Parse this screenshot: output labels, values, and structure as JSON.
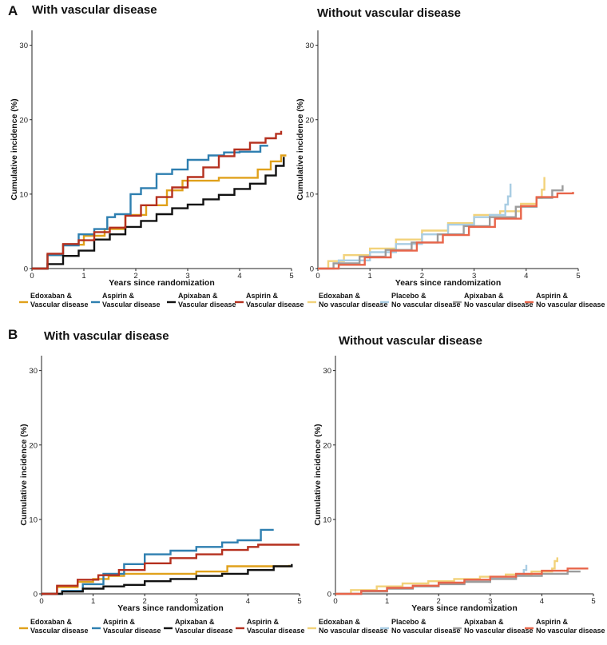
{
  "figure": {
    "panels": [
      {
        "letter": "A",
        "title": "With vascular disease"
      },
      {
        "letter": "",
        "title": "Without vascular disease"
      },
      {
        "letter": "B",
        "title": "With vascular disease"
      },
      {
        "letter": "",
        "title": "Without vascular disease"
      }
    ]
  },
  "chart_data": [
    {
      "type": "line",
      "panel": "A",
      "title": "With vascular disease",
      "xlabel": "Years since randomization",
      "ylabel": "Cumulative incidence (%)",
      "xlim": [
        0,
        5
      ],
      "ylim": [
        0,
        32
      ],
      "xticks": [
        0,
        1,
        2,
        3,
        4,
        5
      ],
      "yticks": [
        0,
        10,
        20,
        30
      ],
      "series": [
        {
          "line1": "Edoxaban &",
          "line2": "Vascular disease",
          "color": "#E0A11B",
          "x": [
            0,
            0.3,
            0.6,
            1.0,
            1.4,
            1.8,
            2.2,
            2.6,
            2.9,
            3.3,
            3.6,
            4.1,
            4.35,
            4.6,
            4.8,
            4.9
          ],
          "y": [
            0,
            1.8,
            3.2,
            4.4,
            5.3,
            7.2,
            8.5,
            10.5,
            11.8,
            11.8,
            12.2,
            12.2,
            13.3,
            14.4,
            15.2,
            15.2
          ]
        },
        {
          "line1": "Aspirin &",
          "line2": "Vascular disease",
          "color": "#2E7FB0",
          "x": [
            0,
            0.3,
            0.6,
            0.9,
            1.2,
            1.45,
            1.6,
            1.9,
            2.1,
            2.4,
            2.7,
            3.0,
            3.4,
            3.7,
            4.0,
            4.2,
            4.4,
            4.55
          ],
          "y": [
            0,
            1.8,
            3.1,
            4.6,
            5.3,
            6.9,
            7.3,
            10.0,
            10.8,
            12.7,
            13.3,
            14.6,
            15.2,
            15.6,
            15.7,
            15.7,
            16.5,
            16.5
          ]
        },
        {
          "line1": "Apixaban &",
          "line2": "Vascular disease",
          "color": "#111111",
          "x": [
            0,
            0.3,
            0.6,
            0.9,
            1.2,
            1.5,
            1.8,
            2.1,
            2.4,
            2.7,
            3.0,
            3.3,
            3.6,
            3.9,
            4.2,
            4.5,
            4.7,
            4.85
          ],
          "y": [
            0,
            0.6,
            1.7,
            2.4,
            3.9,
            4.6,
            5.6,
            6.4,
            7.3,
            8.1,
            8.6,
            9.3,
            9.9,
            10.7,
            11.4,
            12.5,
            13.8,
            15.0
          ]
        },
        {
          "line1": "Aspirin &",
          "line2": "Vascular disease",
          "color": "#B5301F",
          "x": [
            0,
            0.3,
            0.6,
            0.9,
            1.2,
            1.5,
            1.8,
            2.1,
            2.4,
            2.7,
            3.0,
            3.3,
            3.6,
            3.9,
            4.2,
            4.5,
            4.7,
            4.8
          ],
          "y": [
            0,
            2.0,
            3.3,
            3.8,
            4.9,
            5.5,
            7.1,
            8.5,
            9.6,
            10.9,
            12.3,
            13.6,
            15.1,
            16.0,
            16.9,
            17.5,
            18.1,
            18.5
          ]
        }
      ]
    },
    {
      "type": "line",
      "panel": "A",
      "title": "Without vascular disease",
      "xlabel": "Years since randomization",
      "ylabel": "Cumulative incidence (%)",
      "xlim": [
        0,
        5
      ],
      "ylim": [
        0,
        32
      ],
      "xticks": [
        0,
        1,
        2,
        3,
        4,
        5
      ],
      "yticks": [
        0,
        10,
        20,
        30
      ],
      "series": [
        {
          "line1": "Edoxaban &",
          "line2": "No vascular disease",
          "color": "#F2D27A",
          "x": [
            0,
            0.2,
            0.5,
            1.0,
            1.5,
            2.0,
            2.5,
            3.0,
            3.5,
            3.9,
            4.2,
            4.3,
            4.35
          ],
          "y": [
            0,
            1.0,
            1.8,
            2.7,
            3.9,
            5.1,
            6.1,
            7.2,
            7.7,
            8.7,
            9.5,
            10.6,
            12.3
          ]
        },
        {
          "line1": "Placebo &",
          "line2": "No vascular disease",
          "color": "#A9CDE3",
          "x": [
            0,
            0.4,
            1.0,
            1.5,
            2.0,
            2.5,
            3.0,
            3.3,
            3.6,
            3.65,
            3.7
          ],
          "y": [
            0,
            1.1,
            2.2,
            3.3,
            4.6,
            5.9,
            6.9,
            7.2,
            8.6,
            9.7,
            11.4
          ]
        },
        {
          "line1": "Apixaban &",
          "line2": "No vascular disease",
          "color": "#9C9C9C",
          "x": [
            0,
            0.3,
            0.8,
            1.3,
            1.8,
            2.3,
            2.8,
            3.3,
            3.8,
            4.2,
            4.5,
            4.7
          ],
          "y": [
            0,
            0.7,
            1.6,
            2.5,
            3.5,
            4.6,
            5.7,
            6.9,
            8.3,
            9.5,
            10.5,
            11.2
          ]
        },
        {
          "line1": "Aspirin &",
          "line2": "No vascular disease",
          "color": "#E8654A",
          "x": [
            0,
            0.4,
            0.9,
            1.4,
            1.9,
            2.4,
            2.9,
            3.4,
            3.9,
            4.2,
            4.6,
            4.9
          ],
          "y": [
            0,
            0.5,
            1.5,
            2.4,
            3.5,
            4.5,
            5.6,
            6.7,
            8.4,
            9.6,
            10.1,
            10.3
          ]
        }
      ]
    },
    {
      "type": "line",
      "panel": "B",
      "title": "With vascular disease",
      "xlabel": "Years since randomization",
      "ylabel": "Cumulative incidence (%)",
      "xlim": [
        0,
        5
      ],
      "ylim": [
        0,
        32
      ],
      "xticks": [
        0,
        1,
        2,
        3,
        4,
        5
      ],
      "yticks": [
        0,
        10,
        20,
        30
      ],
      "series": [
        {
          "line1": "Edoxaban &",
          "line2": "Vascular disease",
          "color": "#E0A11B",
          "x": [
            0,
            0.3,
            0.7,
            1.0,
            1.3,
            1.6,
            2.0,
            2.5,
            3.0,
            3.5,
            3.6,
            4.2,
            4.6,
            4.8
          ],
          "y": [
            0,
            0.9,
            1.6,
            2.0,
            2.4,
            2.7,
            2.7,
            2.7,
            3.0,
            3.0,
            3.7,
            3.7,
            3.7,
            3.9
          ]
        },
        {
          "line1": "Aspirin &",
          "line2": "Vascular disease",
          "color": "#2E7FB0",
          "x": [
            0,
            0.4,
            0.8,
            1.2,
            1.6,
            2.0,
            2.5,
            3.0,
            3.5,
            3.8,
            4.1,
            4.25,
            4.5
          ],
          "y": [
            0,
            0.4,
            1.3,
            2.7,
            4.0,
            5.3,
            5.8,
            6.3,
            6.9,
            7.2,
            7.2,
            8.6,
            8.6
          ]
        },
        {
          "line1": "Apixaban &",
          "line2": "Vascular disease",
          "color": "#111111",
          "x": [
            0,
            0.4,
            0.8,
            1.2,
            1.6,
            2.0,
            2.5,
            3.0,
            3.5,
            4.0,
            4.5,
            4.85
          ],
          "y": [
            0,
            0.3,
            0.7,
            1.0,
            1.2,
            1.7,
            2.0,
            2.4,
            2.7,
            3.2,
            3.7,
            4.0
          ]
        },
        {
          "line1": "Aspirin &",
          "line2": "Vascular disease",
          "color": "#B5301F",
          "x": [
            0,
            0.3,
            0.7,
            1.1,
            1.5,
            2.0,
            2.5,
            3.0,
            3.5,
            4.0,
            4.2,
            4.6,
            5.0
          ],
          "y": [
            0,
            1.1,
            1.9,
            2.5,
            3.2,
            4.1,
            4.8,
            5.3,
            5.9,
            6.3,
            6.6,
            6.6,
            6.6
          ]
        }
      ]
    },
    {
      "type": "line",
      "panel": "B",
      "title": "Without vascular disease",
      "xlabel": "Years since randomization",
      "ylabel": "Cumulative incidence (%)",
      "xlim": [
        0,
        5
      ],
      "ylim": [
        0,
        32
      ],
      "xticks": [
        0,
        1,
        2,
        3,
        4,
        5
      ],
      "yticks": [
        0,
        10,
        20,
        30
      ],
      "series": [
        {
          "line1": "Edoxaban &",
          "line2": "No vascular disease",
          "color": "#F2D27A",
          "x": [
            0,
            0.3,
            0.8,
            1.3,
            1.8,
            2.3,
            2.8,
            3.3,
            3.8,
            4.2,
            4.25,
            4.3
          ],
          "y": [
            0,
            0.5,
            1.0,
            1.4,
            1.7,
            2.0,
            2.3,
            2.6,
            3.0,
            3.4,
            4.4,
            4.9
          ]
        },
        {
          "line1": "Placebo &",
          "line2": "No vascular disease",
          "color": "#A9CDE3",
          "x": [
            0,
            0.5,
            1.0,
            1.5,
            2.0,
            2.5,
            3.0,
            3.5,
            3.65,
            3.7
          ],
          "y": [
            0,
            0.4,
            0.8,
            1.1,
            1.4,
            1.8,
            2.1,
            2.6,
            3.2,
            3.9
          ]
        },
        {
          "line1": "Apixaban &",
          "line2": "No vascular disease",
          "color": "#9C9C9C",
          "x": [
            0,
            0.5,
            1.0,
            1.5,
            2.0,
            2.5,
            3.0,
            3.5,
            4.0,
            4.5,
            4.75
          ],
          "y": [
            0,
            0.3,
            0.7,
            1.0,
            1.3,
            1.6,
            2.0,
            2.4,
            2.7,
            3.0,
            3.0
          ]
        },
        {
          "line1": "Aspirin &",
          "line2": "No vascular disease",
          "color": "#E8654A",
          "x": [
            0,
            0.5,
            1.0,
            1.5,
            2.0,
            2.5,
            3.0,
            3.5,
            4.0,
            4.5,
            4.9
          ],
          "y": [
            0,
            0.4,
            0.8,
            1.1,
            1.5,
            1.9,
            2.3,
            2.7,
            3.1,
            3.4,
            3.4
          ]
        }
      ]
    }
  ]
}
